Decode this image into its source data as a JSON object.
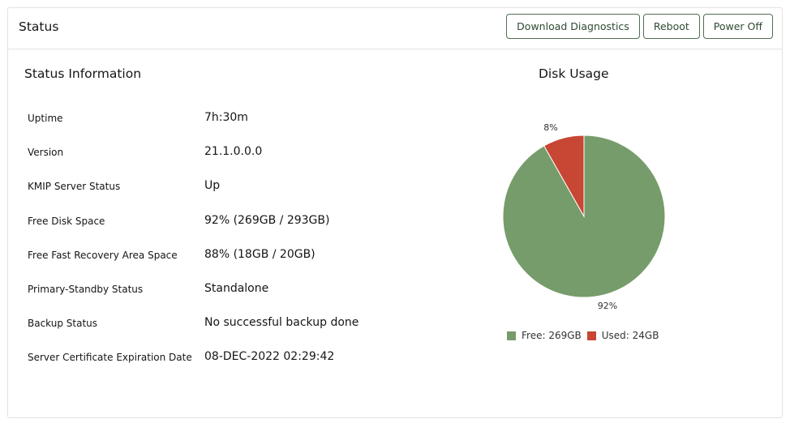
{
  "header": {
    "title": "Status",
    "buttons": [
      "Download Diagnostics",
      "Reboot",
      "Power Off"
    ]
  },
  "status": {
    "title": "Status Information",
    "rows": [
      {
        "label": "Uptime",
        "value": "7h:30m"
      },
      {
        "label": "Version",
        "value": "21.1.0.0.0"
      },
      {
        "label": "KMIP Server Status",
        "value": "Up"
      },
      {
        "label": "Free Disk Space",
        "value": "92% (269GB / 293GB)"
      },
      {
        "label": "Free Fast Recovery Area Space",
        "value": "88% (18GB / 20GB)"
      },
      {
        "label": "Primary-Standby Status",
        "value": "Standalone"
      },
      {
        "label": "Backup Status",
        "value": "No successful backup done"
      },
      {
        "label": "Server Certificate Expiration Date",
        "value": "08-DEC-2022 02:29:42"
      }
    ]
  },
  "chart_data": {
    "type": "pie",
    "title": "Disk Usage",
    "slices": [
      {
        "name": "Free",
        "value": 269,
        "label": "92%",
        "legend": "Free: 269GB",
        "color": "#779c6b"
      },
      {
        "name": "Used",
        "value": 24,
        "label": "8%",
        "legend": "Used: 24GB",
        "color": "#c74634"
      }
    ],
    "legend_position": "bottom"
  }
}
